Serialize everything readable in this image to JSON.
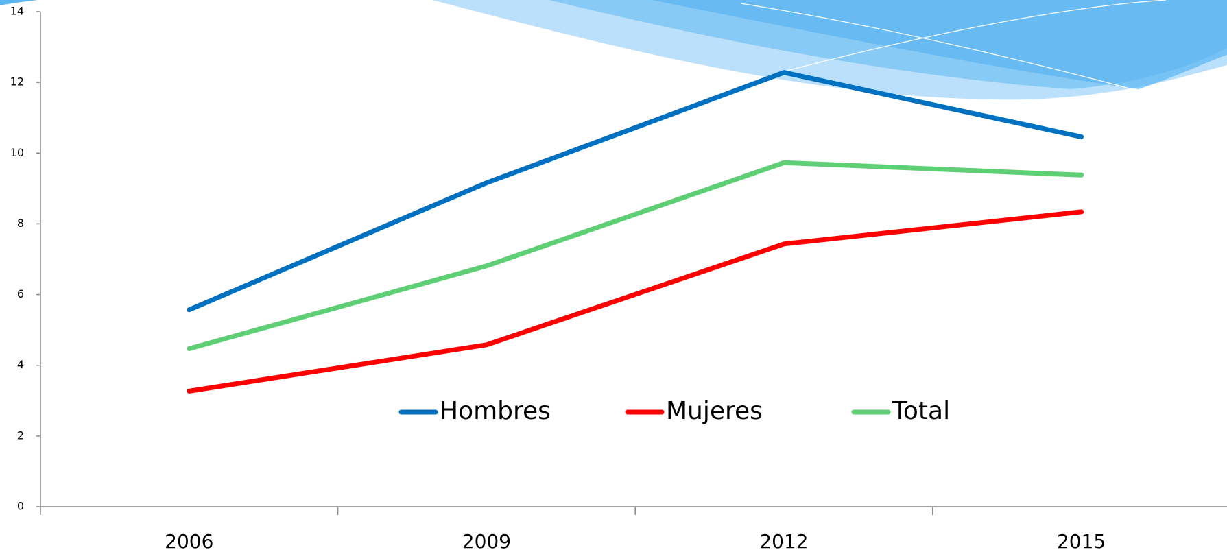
{
  "chart_data": {
    "type": "line",
    "categories": [
      "2006",
      "2009",
      "2012",
      "2015"
    ],
    "series": [
      {
        "name": "Hombres",
        "color": "#0070c0",
        "values": [
          5.57,
          9.16,
          12.28,
          10.46
        ]
      },
      {
        "name": "Mujeres",
        "color": "#ff0000",
        "values": [
          3.27,
          4.58,
          7.43,
          8.34
        ]
      },
      {
        "name": "Total",
        "color": "#5ecf74",
        "values": [
          4.47,
          6.81,
          9.73,
          9.38
        ]
      }
    ],
    "ylim": [
      0,
      14
    ],
    "yticks": [
      0,
      2,
      4,
      6,
      8,
      10,
      12,
      14
    ],
    "grid": false,
    "legend": "center"
  }
}
